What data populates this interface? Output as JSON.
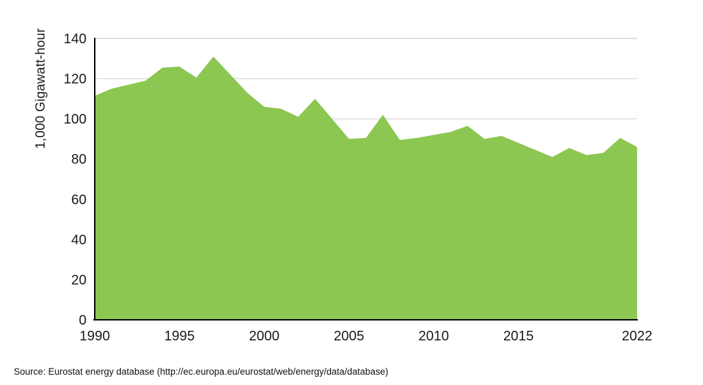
{
  "chart_data": {
    "type": "area",
    "title": "",
    "xlabel": "",
    "ylabel": "1,000 Gigawatt-hour",
    "x": [
      1990,
      1991,
      1992,
      1993,
      1994,
      1995,
      1996,
      1997,
      1998,
      1999,
      2000,
      2001,
      2002,
      2003,
      2004,
      2005,
      2006,
      2007,
      2008,
      2009,
      2010,
      2011,
      2012,
      2013,
      2014,
      2015,
      2016,
      2017,
      2018,
      2019,
      2020,
      2021,
      2022
    ],
    "values": [
      111.5,
      115,
      117,
      119,
      125.5,
      126,
      120.5,
      131,
      122,
      113,
      106,
      105,
      101,
      110,
      100,
      90,
      90.5,
      102,
      89.5,
      90.5,
      92,
      93.5,
      96.5,
      90,
      91.5,
      88,
      84.5,
      81,
      85.5,
      82,
      83,
      90.5,
      86
    ],
    "ylim": [
      0,
      140
    ],
    "ytick_step": 20,
    "yticks": [
      0,
      20,
      40,
      60,
      80,
      100,
      120,
      140
    ],
    "xticks": [
      1990,
      1995,
      2000,
      2005,
      2010,
      2015,
      2022
    ],
    "grid": "horizontal",
    "legend": "none",
    "colors": {
      "area": "#8cc751",
      "gridline": "#d9d9d9",
      "top_border": "#cfcfcf",
      "axis": "#000000",
      "text": "#1a1a1a"
    }
  },
  "source_note": "Source: Eurostat energy database (http://ec.europa.eu/eurostat/web/energy/data/database)"
}
